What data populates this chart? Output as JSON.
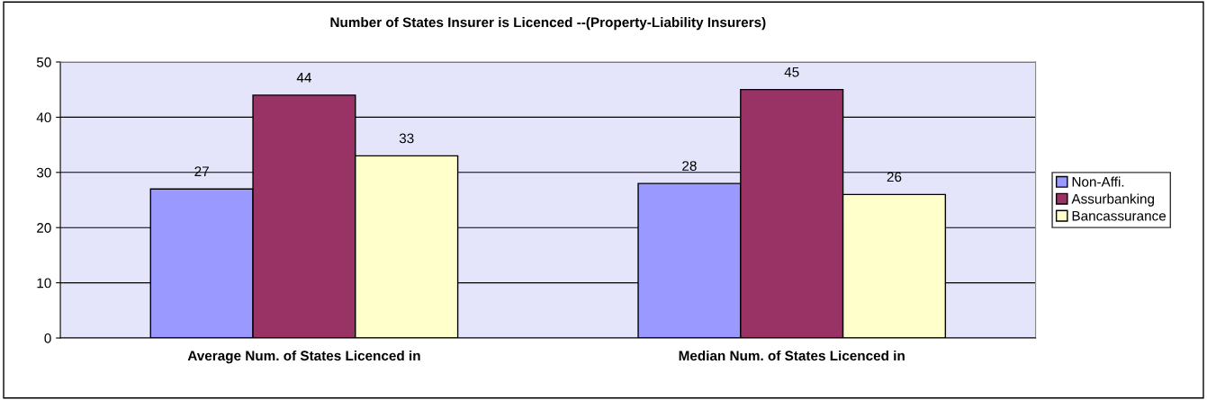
{
  "chart_data": {
    "type": "bar",
    "title": "Number of States Insurer is Licenced --(Property-Liability Insurers)",
    "categories": [
      "Average Num. of States Licenced in",
      "Median Num. of States Licenced in"
    ],
    "series": [
      {
        "name": "Non-Affi.",
        "color": "#9999ff",
        "values": [
          27,
          28
        ]
      },
      {
        "name": "Assurbanking",
        "color": "#993366",
        "values": [
          44,
          45
        ]
      },
      {
        "name": "Bancassurance",
        "color": "#ffffcc",
        "values": [
          33,
          26
        ]
      }
    ],
    "ylim": [
      0,
      50
    ],
    "yticks": [
      0,
      10,
      20,
      30,
      40,
      50
    ],
    "grid": "y",
    "legend": "right",
    "data_labels": true
  }
}
